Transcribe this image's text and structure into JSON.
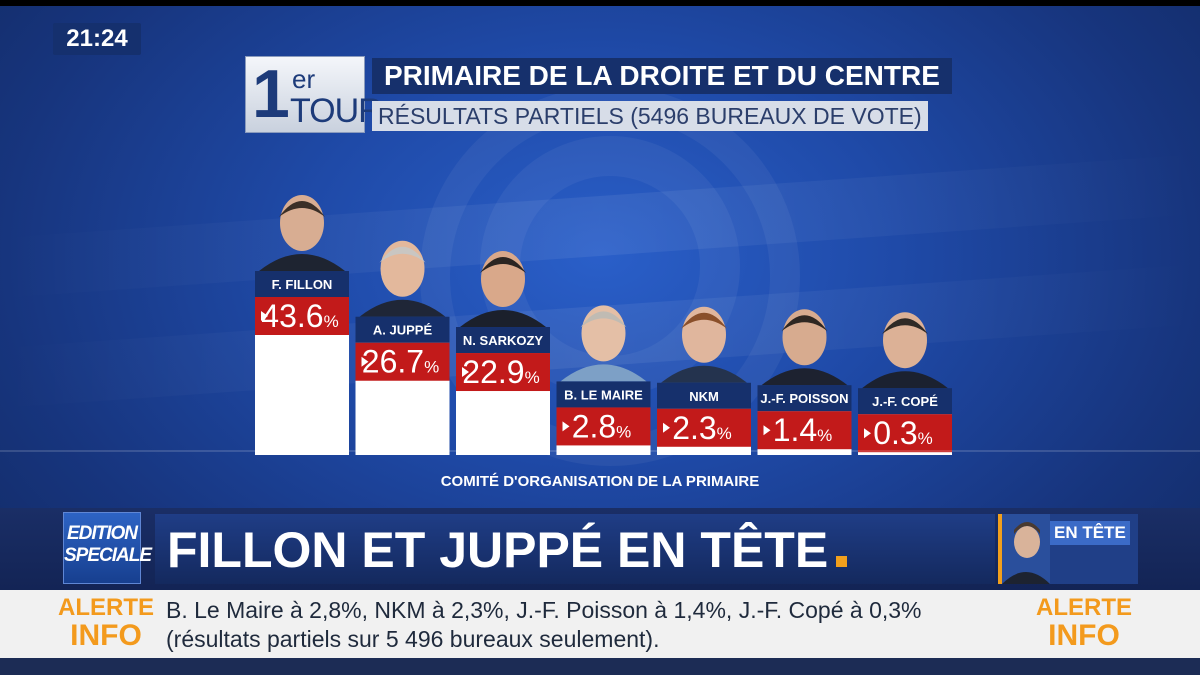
{
  "clock": "21:24",
  "tour": {
    "number": "1",
    "superscript": "er",
    "word": "TOUR"
  },
  "title": "PRIMAIRE DE LA DROITE ET DU CENTRE",
  "subtitle": "RÉSULTATS PARTIELS (5496 BUREAUX DE VOTE)",
  "source": "COMITÉ D'ORGANISATION DE LA PRIMAIRE",
  "chart_data": {
    "type": "bar",
    "title": "PRIMAIRE DE LA DROITE ET DU CENTRE",
    "subtitle": "RÉSULTATS PARTIELS (5496 BUREAUX DE VOTE)",
    "categories": [
      "F. FILLON",
      "A. JUPPÉ",
      "N. SARKOZY",
      "B. LE MAIRE",
      "NKM",
      "J.-F. POISSON",
      "J.-F. COPÉ"
    ],
    "values": [
      43.6,
      26.7,
      22.9,
      2.8,
      2.3,
      1.4,
      0.3
    ],
    "value_labels": [
      "43.6",
      "26.7",
      "22.9",
      "2.8",
      "2.3",
      "1.4",
      "0.3"
    ],
    "unit": "%",
    "xlabel": "",
    "ylabel": "",
    "ylim": [
      0,
      43.6
    ],
    "grid": false,
    "colors": {
      "bar": "#ffffff",
      "name_label": "#16306c",
      "value_label": "#c21a1a"
    }
  },
  "lower_third": {
    "edition_line1": "EDITION",
    "edition_line2": "SPECIALE",
    "headline": "FILLON ET JUPPÉ EN TÊTE",
    "tag": "EN TÊTE"
  },
  "ticker": {
    "alert_word1": "ALERTE",
    "alert_word2": "INFO",
    "line1": "B. Le Maire à 2,8%, NKM à 2,3%, J.-F. Poisson à 1,4%, J.-F. Copé à 0,3%",
    "line2": "(résultats partiels sur 5 496 bureaux seulement)."
  },
  "colors": {
    "accent": "#f39a1d",
    "navy": "#16306c",
    "red": "#c21a1a"
  }
}
